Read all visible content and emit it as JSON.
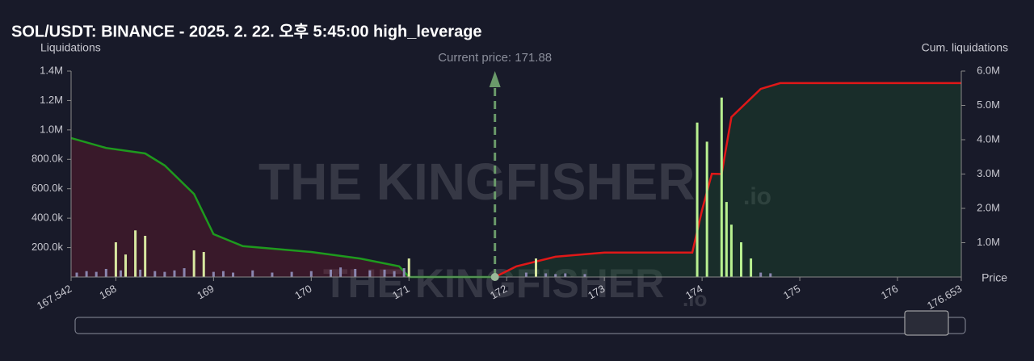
{
  "chart_data": {
    "type": "bar",
    "title": "SOL/USDT: BINANCE - 2025. 2. 22. 오후 5:45:00 high_leverage",
    "ylabel": "Liquidations",
    "y2label": "Cum. liquidations",
    "xlabel": "Price",
    "watermark": "THE KINGFISHER",
    "watermark_suffix": ".io",
    "current_price": 171.88,
    "current_price_label": "Current price: 171.88",
    "current_price_color": "#6a9a6a",
    "xlim": [
      167.542,
      176.653
    ],
    "xticks": [
      167.542,
      168,
      169,
      170,
      171,
      172,
      173,
      174,
      175,
      176,
      176.653
    ],
    "ylim": [
      0,
      1400000
    ],
    "yticks": [
      {
        "value": 200000,
        "label": "200.0k"
      },
      {
        "value": 400000,
        "label": "400.0k"
      },
      {
        "value": 600000,
        "label": "600.0k"
      },
      {
        "value": 800000,
        "label": "800.0k"
      },
      {
        "value": 1000000,
        "label": "1.0M"
      },
      {
        "value": 1200000,
        "label": "1.2M"
      },
      {
        "value": 1400000,
        "label": "1.4M"
      }
    ],
    "y2lim": [
      0,
      6000000
    ],
    "y2ticks": [
      {
        "value": 1000000,
        "label": "1.0M"
      },
      {
        "value": 2000000,
        "label": "2.0M"
      },
      {
        "value": 3000000,
        "label": "3.0M"
      },
      {
        "value": 4000000,
        "label": "4.0M"
      },
      {
        "value": 5000000,
        "label": "5.0M"
      },
      {
        "value": 6000000,
        "label": "6.0M"
      }
    ],
    "series": [
      {
        "type": "bar",
        "color": "#8a86b0",
        "x": [
          167.6,
          167.7,
          167.8,
          167.9,
          168.05,
          168.25,
          168.4,
          168.5,
          168.6,
          168.7,
          169.0,
          169.1,
          169.2,
          169.4,
          169.6,
          169.8,
          170.0,
          170.2,
          170.3,
          170.45,
          170.6,
          170.75,
          170.85,
          170.95,
          172.2,
          172.4,
          172.5,
          172.6,
          172.8,
          174.6,
          174.7
        ],
        "values": [
          30000,
          40000,
          35000,
          55000,
          45000,
          50000,
          40000,
          35000,
          45000,
          60000,
          35000,
          40000,
          30000,
          45000,
          30000,
          35000,
          40000,
          50000,
          65000,
          55000,
          45000,
          50000,
          40000,
          60000,
          30000,
          25000,
          20000,
          25000,
          20000,
          30000,
          25000
        ]
      },
      {
        "type": "bar",
        "color": "#d8e8a0",
        "x": [
          168.0,
          168.1,
          168.2,
          168.3,
          168.8,
          168.9,
          171.0,
          172.3
        ],
        "values": [
          236000,
          153000,
          317000,
          280000,
          181000,
          170000,
          126000,
          126000
        ]
      },
      {
        "type": "bar",
        "color": "#b8f090",
        "x": [
          173.95,
          174.05,
          174.2,
          174.25,
          174.3,
          174.4,
          174.5
        ],
        "values": [
          1050000,
          920000,
          1220000,
          510000,
          356000,
          236000,
          126000
        ]
      },
      {
        "type": "line",
        "axis": "y2",
        "color": "#1e9a1e",
        "fill": "rgba(120,25,45,0.35)",
        "x": [
          167.542,
          167.9,
          168.3,
          168.5,
          168.8,
          169.0,
          169.3,
          170.0,
          170.5,
          170.9,
          171.0,
          171.88
        ],
        "values": [
          4050000,
          3760000,
          3600000,
          3250000,
          2420000,
          1250000,
          900000,
          730000,
          540000,
          310000,
          0,
          0
        ]
      },
      {
        "type": "line",
        "axis": "y2",
        "color": "#e01818",
        "fill": "rgba(30,90,45,0.3)",
        "x": [
          171.88,
          172.1,
          172.5,
          173.0,
          173.9,
          174.0,
          174.1,
          174.2,
          174.3,
          174.6,
          174.8,
          176.653
        ],
        "values": [
          0,
          310000,
          590000,
          710000,
          710000,
          1950000,
          3010000,
          3000000,
          4660000,
          5480000,
          5650000,
          5650000
        ]
      }
    ]
  }
}
